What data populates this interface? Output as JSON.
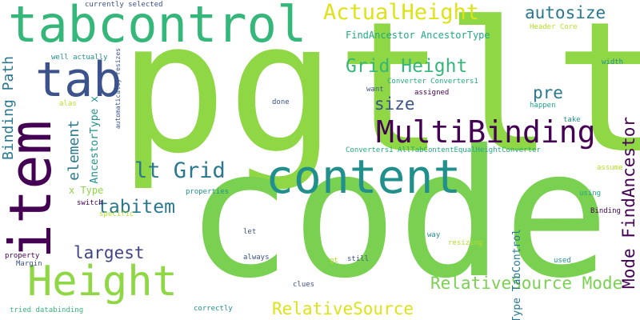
{
  "words": [
    {
      "text": "pgtlt",
      "color": "#8fd744"
    },
    {
      "text": "code",
      "color": "#7ad151"
    },
    {
      "text": "content",
      "color": "#21908d"
    },
    {
      "text": "tabcontrol",
      "color": "#35b779"
    },
    {
      "text": "item",
      "color": "#440154"
    },
    {
      "text": "tab",
      "color": "#3b528b"
    },
    {
      "text": "Height",
      "color": "#8fd744"
    },
    {
      "text": "MultiBinding",
      "color": "#440154"
    },
    {
      "text": "ActualHeight",
      "color": "#dde318"
    },
    {
      "text": "Grid Height",
      "color": "#35b779"
    },
    {
      "text": "autosize",
      "color": "#2a788e"
    },
    {
      "text": "pre",
      "color": "#2a788e"
    },
    {
      "text": "size",
      "color": "#3b528b"
    },
    {
      "text": "lt Grid",
      "color": "#2a788e"
    },
    {
      "text": "tabitem",
      "color": "#2a788e"
    },
    {
      "text": "largest",
      "color": "#414487"
    },
    {
      "text": "RelativeSource",
      "color": "#dde318"
    },
    {
      "text": "RelativeSource Mode",
      "color": "#7ad151"
    },
    {
      "text": "Mode FindAncestor",
      "color": "#440154"
    },
    {
      "text": "Binding Path",
      "color": "#2a788e"
    },
    {
      "text": "element",
      "color": "#2a788e"
    },
    {
      "text": "AncestorType x",
      "color": "#21908d"
    },
    {
      "text": "Type TabControl",
      "color": "#2a788e"
    },
    {
      "text": "FindAncestor AncestorType",
      "color": "#22a884"
    },
    {
      "text": "currently selected",
      "color": "#3b528b"
    },
    {
      "text": "Header Core",
      "color": "#b5de2b"
    },
    {
      "text": "well actually",
      "color": "#21908d"
    },
    {
      "text": "automatically resizes",
      "color": "#3b528b"
    },
    {
      "text": "Converter Converters1",
      "color": "#22a884"
    },
    {
      "text": "want",
      "color": "#3b528b"
    },
    {
      "text": "assigned",
      "color": "#440154"
    },
    {
      "text": "width",
      "color": "#21908d"
    },
    {
      "text": "alas",
      "color": "#b5de2b"
    },
    {
      "text": "done",
      "color": "#3b528b"
    },
    {
      "text": "happen",
      "color": "#22a884"
    },
    {
      "text": "take",
      "color": "#21908d"
    },
    {
      "text": "Converters1 AllTabContentEqualHeightConverter",
      "color": "#22a884"
    },
    {
      "text": "assume",
      "color": "#b5de2b"
    },
    {
      "text": "x Type",
      "color": "#8fd744"
    },
    {
      "text": "properties",
      "color": "#21908d"
    },
    {
      "text": "using",
      "color": "#22a884"
    },
    {
      "text": "switch",
      "color": "#440154"
    },
    {
      "text": "specific",
      "color": "#b5de2b"
    },
    {
      "text": "Binding",
      "color": "#440154"
    },
    {
      "text": "let",
      "color": "#3b528b"
    },
    {
      "text": "way",
      "color": "#21908d"
    },
    {
      "text": "resizing",
      "color": "#b5de2b"
    },
    {
      "text": "property",
      "color": "#440154"
    },
    {
      "text": "Margin",
      "color": "#3b528b"
    },
    {
      "text": "always",
      "color": "#3b528b"
    },
    {
      "text": "gt",
      "color": "#b5de2b"
    },
    {
      "text": "still",
      "color": "#3b528b"
    },
    {
      "text": "used",
      "color": "#21908d"
    },
    {
      "text": "clues",
      "color": "#3b528b"
    },
    {
      "text": "tried databinding",
      "color": "#35b779"
    },
    {
      "text": "correctly",
      "color": "#21908d"
    }
  ]
}
